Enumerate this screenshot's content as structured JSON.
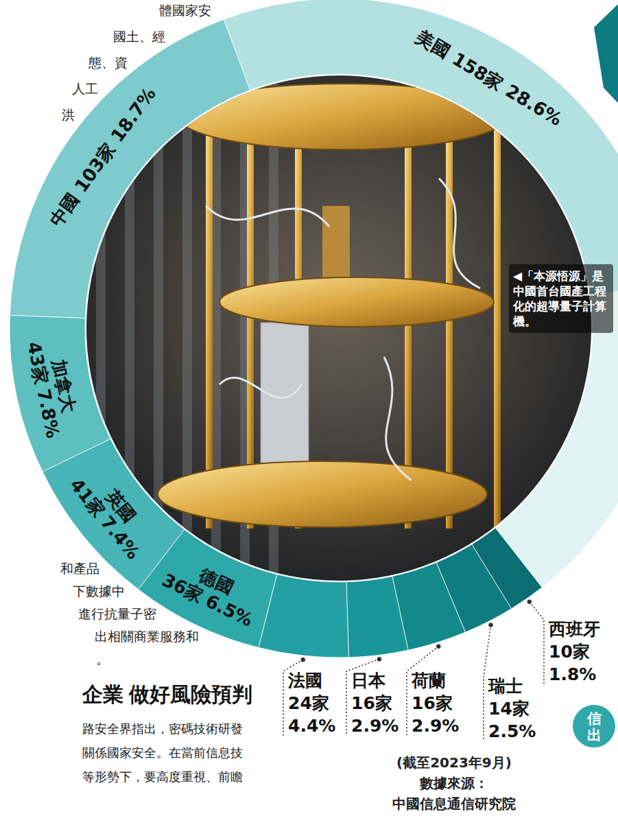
{
  "chart_data": {
    "type": "donut",
    "categories": [
      "美國",
      "中國",
      "加拿大",
      "英國",
      "德國",
      "法國",
      "日本",
      "荷蘭",
      "瑞士",
      "西班牙"
    ],
    "values": [
      28.6,
      18.7,
      7.8,
      7.4,
      6.5,
      4.4,
      2.9,
      2.9,
      2.5,
      1.8
    ],
    "value_labels": [
      "28.6%",
      "18.7%",
      "7.8%",
      "7.4%",
      "6.5%",
      "4.4%",
      "2.9%",
      "2.9%",
      "2.5%",
      "1.8%"
    ],
    "counts": [
      158,
      103,
      43,
      41,
      36,
      24,
      16,
      16,
      14,
      10
    ],
    "count_labels": [
      "158家",
      "103家",
      "43家",
      "41家",
      "36家",
      "24家",
      "16家",
      "16家",
      "14家",
      "10家"
    ],
    "colors": [
      "#b3e0e1",
      "#7dcbcc",
      "#5dbfc0",
      "#47b4b6",
      "#2fa8aa",
      "#22a0a3",
      "#1a9598",
      "#13898c",
      "#0e7c80",
      "#0a6e72"
    ],
    "data_labels": true,
    "date_note": "(截至2023年9月)",
    "source_label": "數據來源：",
    "source": "中國信息通信研究院"
  },
  "photo_caption": "◀「本源悟源」是中國首台國產工程化的超導量子計算機。",
  "article": {
    "top_lines": [
      "體國家安",
      "國土、經",
      "態、資",
      "人工",
      "洪"
    ],
    "bottom_lines": [
      "和產品",
      "下數據中",
      "進行抗量子密",
      "出相關商業服務和",
      "。"
    ],
    "heading": "企業 做好風險預判",
    "paragraph_lines": [
      "路安全界指出，密碼技術研發",
      "關係國家安全。在當前信息技",
      "等形勢下，要高度重視、前瞻"
    ]
  },
  "badge_lines": [
    "信",
    "出"
  ]
}
